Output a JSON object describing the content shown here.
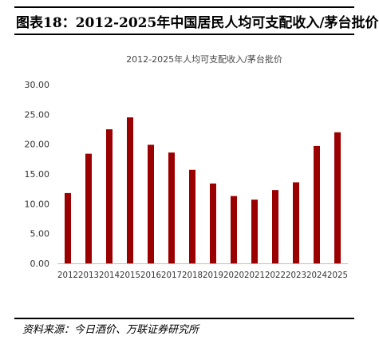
{
  "figure_title": "图表18：2012-2025年中国居民人均可支配收入/茅台批价",
  "source": "资料来源：今日酒价、万联证券研究所",
  "chart_data": {
    "type": "bar",
    "title": "2012-2025年人均可支配收入/茅台批价",
    "xlabel": "",
    "ylabel": "",
    "categories": [
      "2012",
      "2013",
      "2014",
      "2015",
      "2016",
      "2017",
      "2018",
      "2019",
      "2020",
      "2021",
      "2022",
      "2023",
      "2024",
      "2025"
    ],
    "values": [
      11.8,
      18.4,
      22.5,
      24.5,
      19.9,
      18.6,
      15.7,
      13.4,
      11.3,
      10.7,
      12.3,
      13.6,
      19.7,
      22.0
    ],
    "ylim": [
      0,
      30
    ],
    "yticks": [
      "0.00",
      "5.00",
      "10.00",
      "15.00",
      "20.00",
      "25.00",
      "30.00"
    ],
    "bar_color": "#9b0000",
    "grid": false,
    "legend": "none"
  }
}
